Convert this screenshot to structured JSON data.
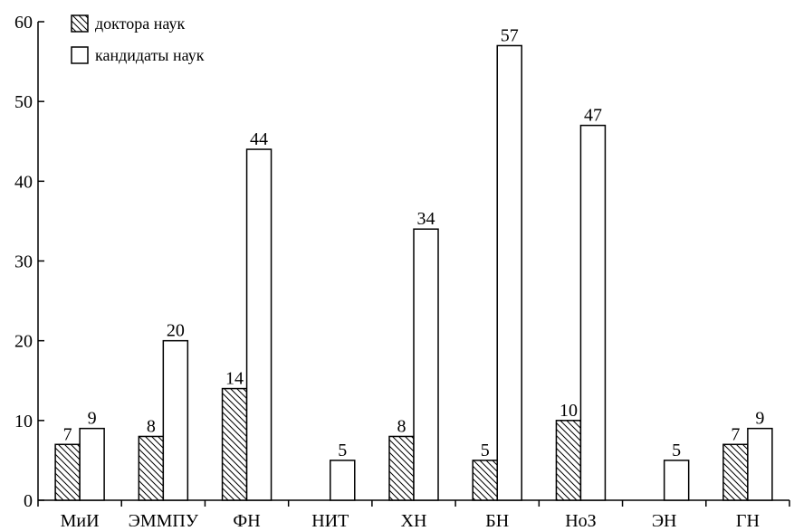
{
  "chart_data": {
    "type": "bar",
    "categories": [
      "МиИ",
      "ЭММПУ",
      "ФН",
      "НИТ",
      "ХН",
      "БН",
      "НоЗ",
      "ЭН",
      "ГН"
    ],
    "series": [
      {
        "name": "доктора наук",
        "values": [
          7,
          8,
          14,
          null,
          8,
          5,
          10,
          null,
          7
        ],
        "pattern": "hatched"
      },
      {
        "name": "кандидаты наук",
        "values": [
          9,
          20,
          44,
          5,
          34,
          57,
          47,
          5,
          9
        ],
        "pattern": "white"
      }
    ],
    "title": "",
    "xlabel": "",
    "ylabel": "",
    "ylim": [
      0,
      60
    ],
    "yticks": [
      0,
      10,
      20,
      30,
      40,
      50,
      60
    ],
    "grid": false,
    "legend_position": "top-left",
    "colors": {
      "stroke": "#000000",
      "fill": "#ffffff",
      "hatch": "#000000"
    }
  }
}
